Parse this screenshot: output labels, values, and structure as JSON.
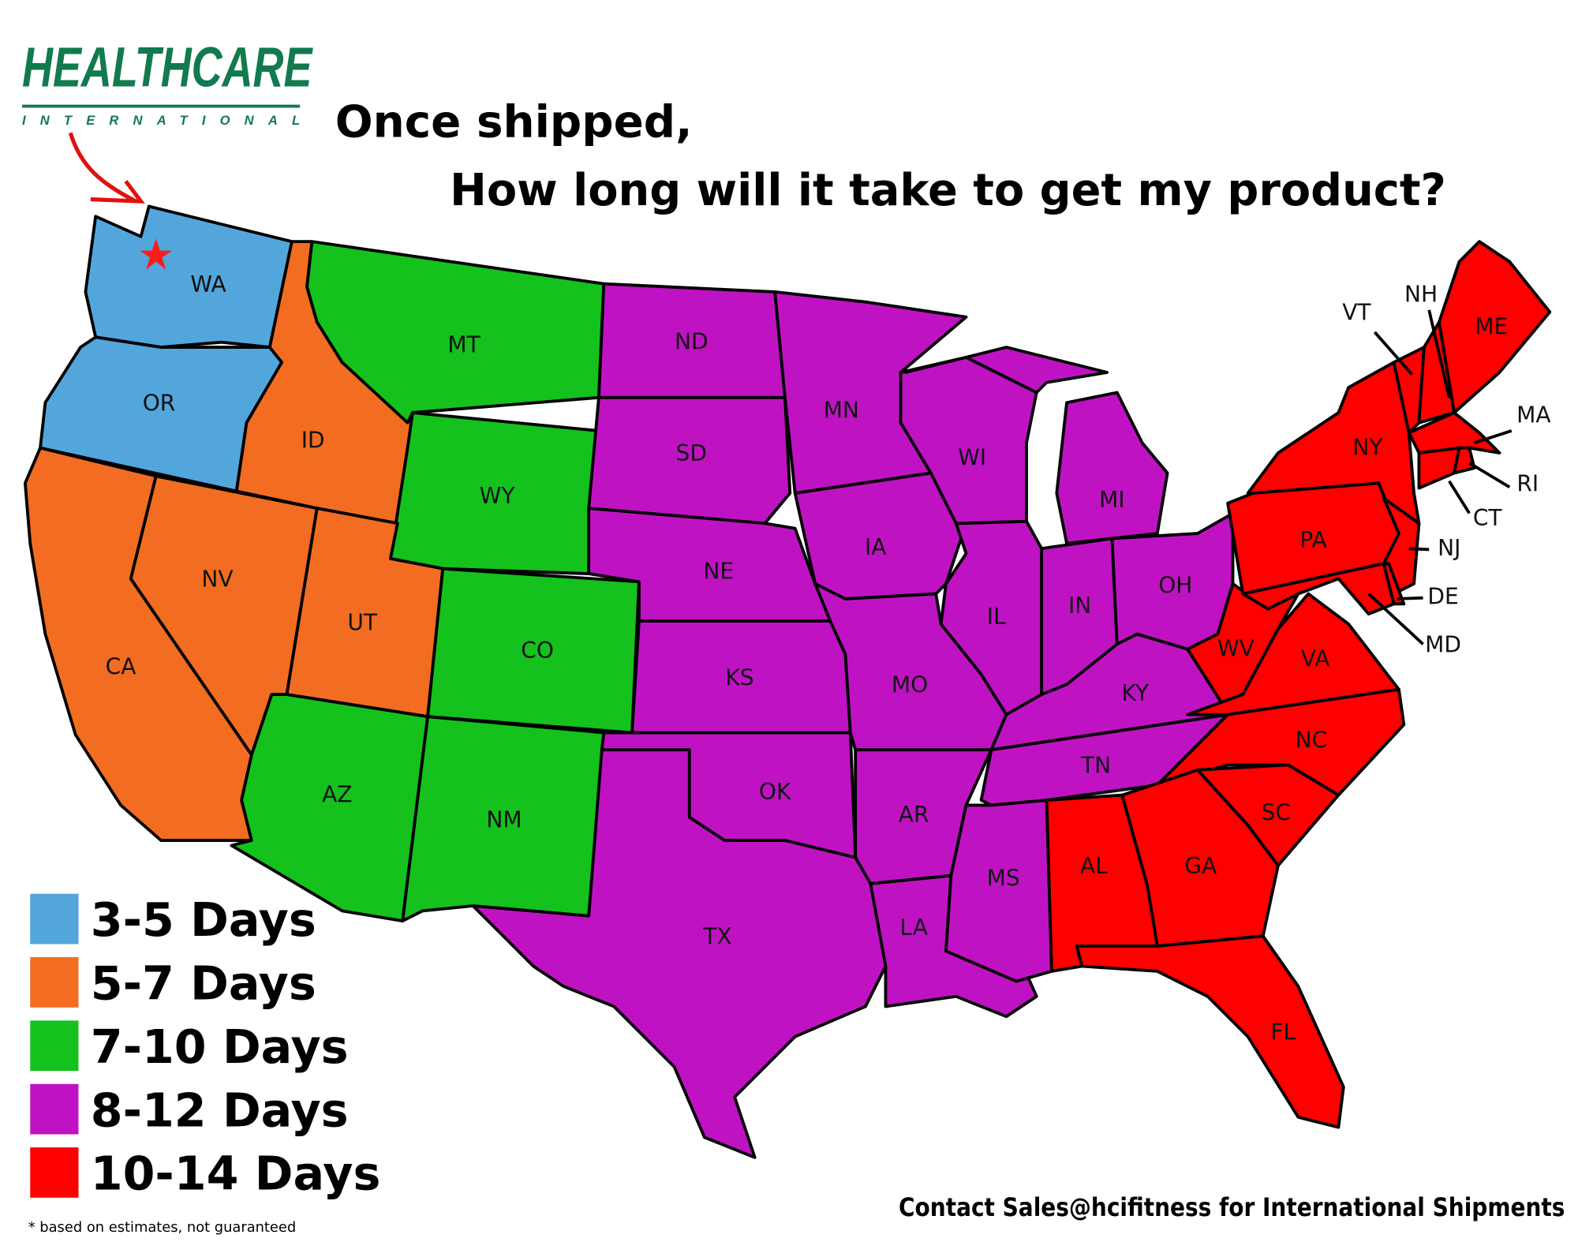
{
  "logo": {
    "name": "HEALTHCARE",
    "sub": "INTERNATIONAL",
    "color": "#117a4e"
  },
  "title": {
    "line1": "Once shipped,",
    "line2": "How long will it take to get my product?"
  },
  "legend": [
    {
      "label": "3-5 Days",
      "color": "#52a6dc",
      "group": "a"
    },
    {
      "label": "5-7 Days",
      "color": "#f26c21",
      "group": "b"
    },
    {
      "label": "7-10 Days",
      "color": "#14c11d",
      "group": "c"
    },
    {
      "label": "8-12 Days",
      "color": "#bf13c3",
      "group": "d"
    },
    {
      "label": "10-14 Days",
      "color": "#fe0000",
      "group": "e"
    }
  ],
  "states": {
    "WA": "a",
    "OR": "a",
    "CA": "b",
    "NV": "b",
    "ID": "b",
    "UT": "b",
    "MT": "c",
    "WY": "c",
    "CO": "c",
    "AZ": "c",
    "NM": "c",
    "ND": "d",
    "SD": "d",
    "NE": "d",
    "KS": "d",
    "OK": "d",
    "TX": "d",
    "MN": "d",
    "IA": "d",
    "MO": "d",
    "AR": "d",
    "LA": "d",
    "MS": "d",
    "TN": "d",
    "KY": "d",
    "IL": "d",
    "WI": "d",
    "MI": "d",
    "IN": "d",
    "OH": "d",
    "WV": "e",
    "VA": "e",
    "NC": "e",
    "SC": "e",
    "GA": "e",
    "AL": "e",
    "FL": "e",
    "PA": "e",
    "NY": "e",
    "NJ": "e",
    "MD": "e",
    "DE": "e",
    "VT": "e",
    "NH": "e",
    "ME": "e",
    "MA": "e",
    "CT": "e",
    "RI": "e"
  },
  "origin_marker": "star-icon",
  "footnote": "* based on estimates, not guaranteed",
  "contact": "Contact Sales@hcifitness for International Shipments"
}
